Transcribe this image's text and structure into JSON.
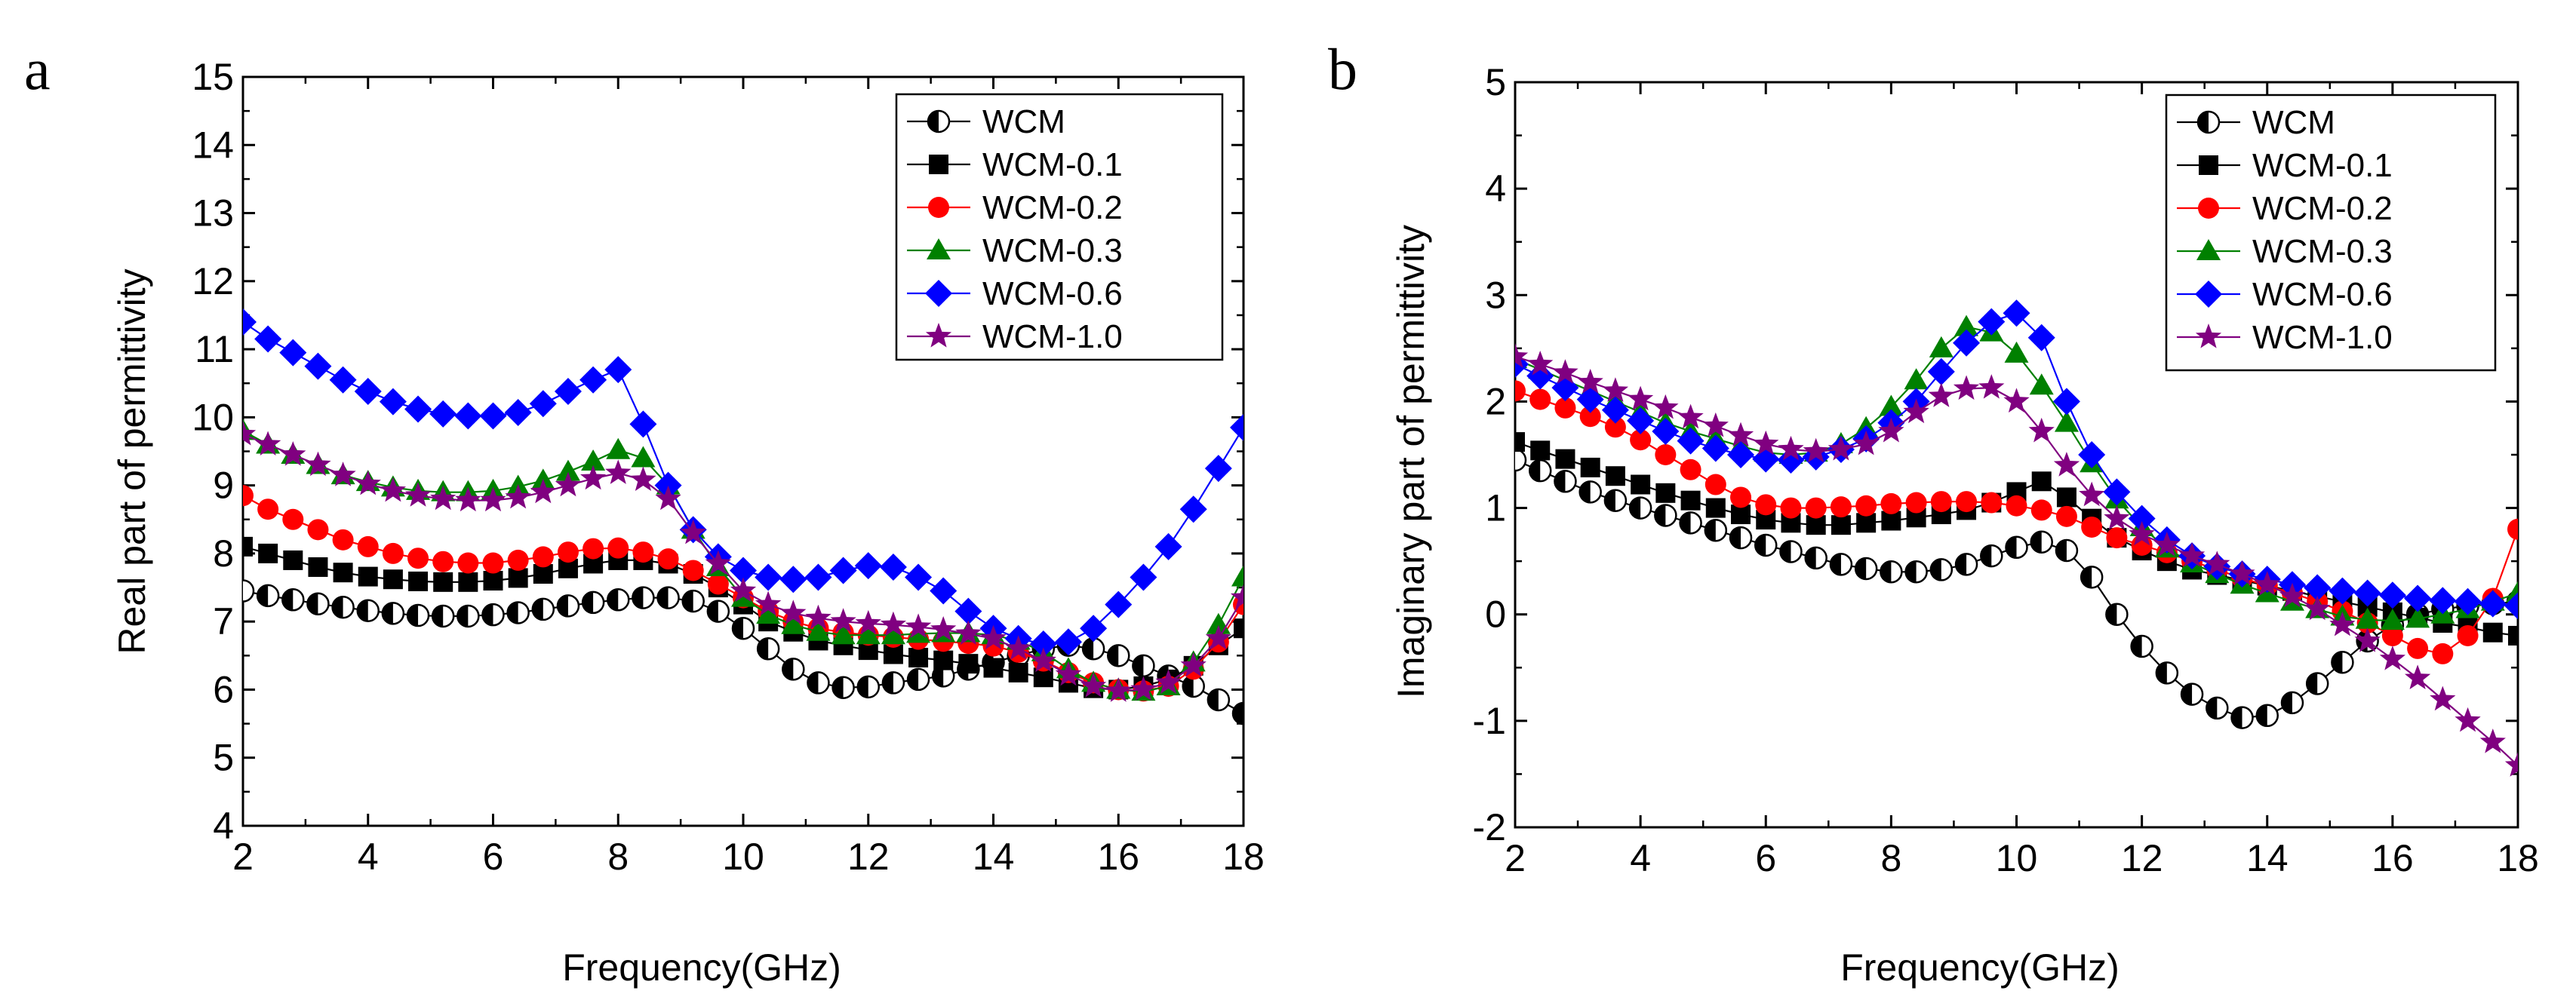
{
  "chart_data": [
    {
      "type": "line",
      "panel": "a",
      "xlabel": "Frequency(GHz)",
      "ylabel": "Real part of permittivity",
      "xlim": [
        2,
        18
      ],
      "ylim": [
        4,
        15
      ],
      "xticks": [
        2,
        4,
        6,
        8,
        10,
        12,
        14,
        16,
        18
      ],
      "yticks": [
        4,
        5,
        6,
        7,
        8,
        9,
        10,
        11,
        12,
        13,
        14,
        15
      ],
      "legend_position": "top-right",
      "x": [
        2.0,
        2.4,
        2.8,
        3.2,
        3.6,
        4.0,
        4.4,
        4.8,
        5.2,
        5.6,
        6.0,
        6.4,
        6.8,
        7.2,
        7.6,
        8.0,
        8.4,
        8.8,
        9.2,
        9.6,
        10.0,
        10.4,
        10.8,
        11.2,
        11.6,
        12.0,
        12.4,
        12.8,
        13.2,
        13.6,
        14.0,
        14.4,
        14.8,
        15.2,
        15.6,
        16.0,
        16.4,
        16.8,
        17.2,
        17.6,
        18.0
      ],
      "series": [
        {
          "name": "WCM",
          "color": "#000000",
          "marker": "half-circle",
          "values": [
            7.45,
            7.38,
            7.32,
            7.26,
            7.21,
            7.16,
            7.12,
            7.09,
            7.08,
            7.08,
            7.1,
            7.13,
            7.18,
            7.23,
            7.28,
            7.32,
            7.35,
            7.35,
            7.3,
            7.15,
            6.9,
            6.6,
            6.3,
            6.1,
            6.03,
            6.04,
            6.1,
            6.15,
            6.2,
            6.3,
            6.4,
            6.5,
            6.6,
            6.65,
            6.6,
            6.5,
            6.35,
            6.2,
            6.05,
            5.85,
            5.65
          ]
        },
        {
          "name": "WCM-0.1",
          "color": "#000000",
          "marker": "square",
          "values": [
            8.1,
            8.0,
            7.9,
            7.8,
            7.72,
            7.66,
            7.62,
            7.59,
            7.58,
            7.58,
            7.6,
            7.64,
            7.7,
            7.78,
            7.85,
            7.9,
            7.9,
            7.85,
            7.7,
            7.5,
            7.25,
            7.0,
            6.85,
            6.72,
            6.65,
            6.58,
            6.52,
            6.47,
            6.43,
            6.38,
            6.32,
            6.25,
            6.18,
            6.1,
            6.02,
            6.0,
            6.05,
            6.15,
            6.35,
            6.65,
            6.9
          ]
        },
        {
          "name": "WCM-0.2",
          "color": "#ff0000",
          "marker": "circle",
          "values": [
            8.85,
            8.65,
            8.5,
            8.35,
            8.2,
            8.1,
            8.0,
            7.93,
            7.88,
            7.86,
            7.86,
            7.9,
            7.95,
            8.02,
            8.07,
            8.08,
            8.02,
            7.92,
            7.75,
            7.55,
            7.35,
            7.15,
            7.0,
            6.9,
            6.84,
            6.8,
            6.77,
            6.74,
            6.71,
            6.68,
            6.64,
            6.55,
            6.42,
            6.25,
            6.1,
            6.0,
            5.98,
            6.05,
            6.3,
            6.7,
            7.25
          ]
        },
        {
          "name": "WCM-0.3",
          "color": "#008000",
          "marker": "triangle",
          "values": [
            9.8,
            9.6,
            9.45,
            9.3,
            9.15,
            9.05,
            8.97,
            8.92,
            8.9,
            8.9,
            8.92,
            8.98,
            9.07,
            9.2,
            9.35,
            9.52,
            9.4,
            9.0,
            8.35,
            7.8,
            7.35,
            7.1,
            6.95,
            6.85,
            6.8,
            6.8,
            6.8,
            6.82,
            6.83,
            6.83,
            6.8,
            6.72,
            6.55,
            6.3,
            6.1,
            6.0,
            5.97,
            6.05,
            6.4,
            6.95,
            7.65
          ]
        },
        {
          "name": "WCM-0.6",
          "color": "#0000ff",
          "marker": "diamond",
          "values": [
            11.4,
            11.15,
            10.95,
            10.75,
            10.55,
            10.38,
            10.23,
            10.12,
            10.05,
            10.02,
            10.02,
            10.07,
            10.2,
            10.38,
            10.55,
            10.7,
            9.9,
            9.0,
            8.35,
            7.95,
            7.75,
            7.65,
            7.62,
            7.65,
            7.75,
            7.82,
            7.8,
            7.65,
            7.45,
            7.15,
            6.9,
            6.75,
            6.67,
            6.7,
            6.9,
            7.25,
            7.65,
            8.1,
            8.65,
            9.25,
            9.85
          ]
        },
        {
          "name": "WCM-1.0",
          "color": "#800080",
          "marker": "star",
          "values": [
            9.75,
            9.6,
            9.45,
            9.3,
            9.15,
            9.02,
            8.92,
            8.85,
            8.8,
            8.78,
            8.78,
            8.82,
            8.9,
            9.0,
            9.1,
            9.18,
            9.08,
            8.8,
            8.3,
            7.85,
            7.45,
            7.25,
            7.12,
            7.05,
            7.0,
            6.97,
            6.95,
            6.92,
            6.88,
            6.82,
            6.75,
            6.6,
            6.42,
            6.22,
            6.05,
            5.98,
            6.0,
            6.1,
            6.35,
            6.75,
            7.35
          ]
        }
      ]
    },
    {
      "type": "line",
      "panel": "b",
      "xlabel": "Frequency(GHz)",
      "ylabel": "Imaginary part of permittivity",
      "xlim": [
        2,
        18
      ],
      "ylim": [
        -2,
        5
      ],
      "xticks": [
        2,
        4,
        6,
        8,
        10,
        12,
        14,
        16,
        18
      ],
      "yticks": [
        -2,
        -1,
        0,
        1,
        2,
        3,
        4,
        5
      ],
      "legend_position": "top-right",
      "x": [
        2.0,
        2.4,
        2.8,
        3.2,
        3.6,
        4.0,
        4.4,
        4.8,
        5.2,
        5.6,
        6.0,
        6.4,
        6.8,
        7.2,
        7.6,
        8.0,
        8.4,
        8.8,
        9.2,
        9.6,
        10.0,
        10.4,
        10.8,
        11.2,
        11.6,
        12.0,
        12.4,
        12.8,
        13.2,
        13.6,
        14.0,
        14.4,
        14.8,
        15.2,
        15.6,
        16.0,
        16.4,
        16.8,
        17.2,
        17.6,
        18.0
      ],
      "series": [
        {
          "name": "WCM",
          "color": "#000000",
          "marker": "half-circle",
          "values": [
            1.45,
            1.35,
            1.25,
            1.15,
            1.07,
            1.0,
            0.93,
            0.86,
            0.79,
            0.72,
            0.65,
            0.59,
            0.53,
            0.47,
            0.43,
            0.4,
            0.4,
            0.42,
            0.47,
            0.55,
            0.63,
            0.68,
            0.6,
            0.35,
            0.0,
            -0.3,
            -0.55,
            -0.75,
            -0.88,
            -0.97,
            -0.95,
            -0.83,
            -0.65,
            -0.45,
            -0.25,
            -0.1,
            0.0,
            0.05,
            0.08,
            0.1,
            0.12
          ]
        },
        {
          "name": "WCM-0.1",
          "color": "#000000",
          "marker": "square",
          "values": [
            1.62,
            1.54,
            1.46,
            1.38,
            1.3,
            1.22,
            1.14,
            1.07,
            1.0,
            0.94,
            0.89,
            0.86,
            0.84,
            0.84,
            0.86,
            0.88,
            0.91,
            0.94,
            0.98,
            1.05,
            1.15,
            1.25,
            1.1,
            0.9,
            0.72,
            0.6,
            0.5,
            0.42,
            0.37,
            0.32,
            0.27,
            0.22,
            0.17,
            0.12,
            0.07,
            0.02,
            -0.03,
            -0.08,
            -0.12,
            -0.17,
            -0.2
          ]
        },
        {
          "name": "WCM-0.2",
          "color": "#ff0000",
          "marker": "circle",
          "values": [
            2.1,
            2.02,
            1.94,
            1.86,
            1.76,
            1.64,
            1.5,
            1.36,
            1.22,
            1.1,
            1.03,
            1.0,
            1.0,
            1.01,
            1.02,
            1.04,
            1.05,
            1.06,
            1.06,
            1.05,
            1.02,
            0.98,
            0.92,
            0.82,
            0.72,
            0.65,
            0.58,
            0.5,
            0.42,
            0.34,
            0.27,
            0.2,
            0.12,
            0.03,
            -0.08,
            -0.2,
            -0.32,
            -0.37,
            -0.2,
            0.15,
            0.8
          ]
        },
        {
          "name": "WCM-0.3",
          "color": "#008000",
          "marker": "triangle",
          "values": [
            2.4,
            2.3,
            2.2,
            2.1,
            2.0,
            1.9,
            1.8,
            1.72,
            1.65,
            1.58,
            1.52,
            1.5,
            1.52,
            1.6,
            1.75,
            1.95,
            2.2,
            2.5,
            2.7,
            2.65,
            2.45,
            2.15,
            1.8,
            1.42,
            1.08,
            0.82,
            0.62,
            0.48,
            0.38,
            0.28,
            0.2,
            0.12,
            0.05,
            -0.02,
            -0.05,
            -0.06,
            -0.04,
            0.0,
            0.05,
            0.12,
            0.2
          ]
        },
        {
          "name": "WCM-0.6",
          "color": "#0000ff",
          "marker": "diamond",
          "values": [
            2.35,
            2.24,
            2.13,
            2.02,
            1.92,
            1.82,
            1.72,
            1.63,
            1.56,
            1.5,
            1.46,
            1.45,
            1.48,
            1.55,
            1.65,
            1.8,
            2.0,
            2.28,
            2.55,
            2.75,
            2.83,
            2.6,
            2.0,
            1.5,
            1.15,
            0.9,
            0.7,
            0.55,
            0.45,
            0.38,
            0.33,
            0.28,
            0.25,
            0.22,
            0.2,
            0.18,
            0.15,
            0.13,
            0.12,
            0.1,
            0.08
          ]
        },
        {
          "name": "WCM-1.0",
          "color": "#800080",
          "marker": "star",
          "values": [
            2.42,
            2.35,
            2.27,
            2.18,
            2.1,
            2.02,
            1.94,
            1.85,
            1.77,
            1.68,
            1.6,
            1.55,
            1.53,
            1.55,
            1.6,
            1.72,
            1.9,
            2.05,
            2.12,
            2.13,
            2.0,
            1.72,
            1.4,
            1.12,
            0.9,
            0.75,
            0.65,
            0.55,
            0.47,
            0.38,
            0.28,
            0.17,
            0.05,
            -0.1,
            -0.25,
            -0.42,
            -0.6,
            -0.8,
            -1.0,
            -1.2,
            -1.42
          ]
        }
      ]
    }
  ]
}
